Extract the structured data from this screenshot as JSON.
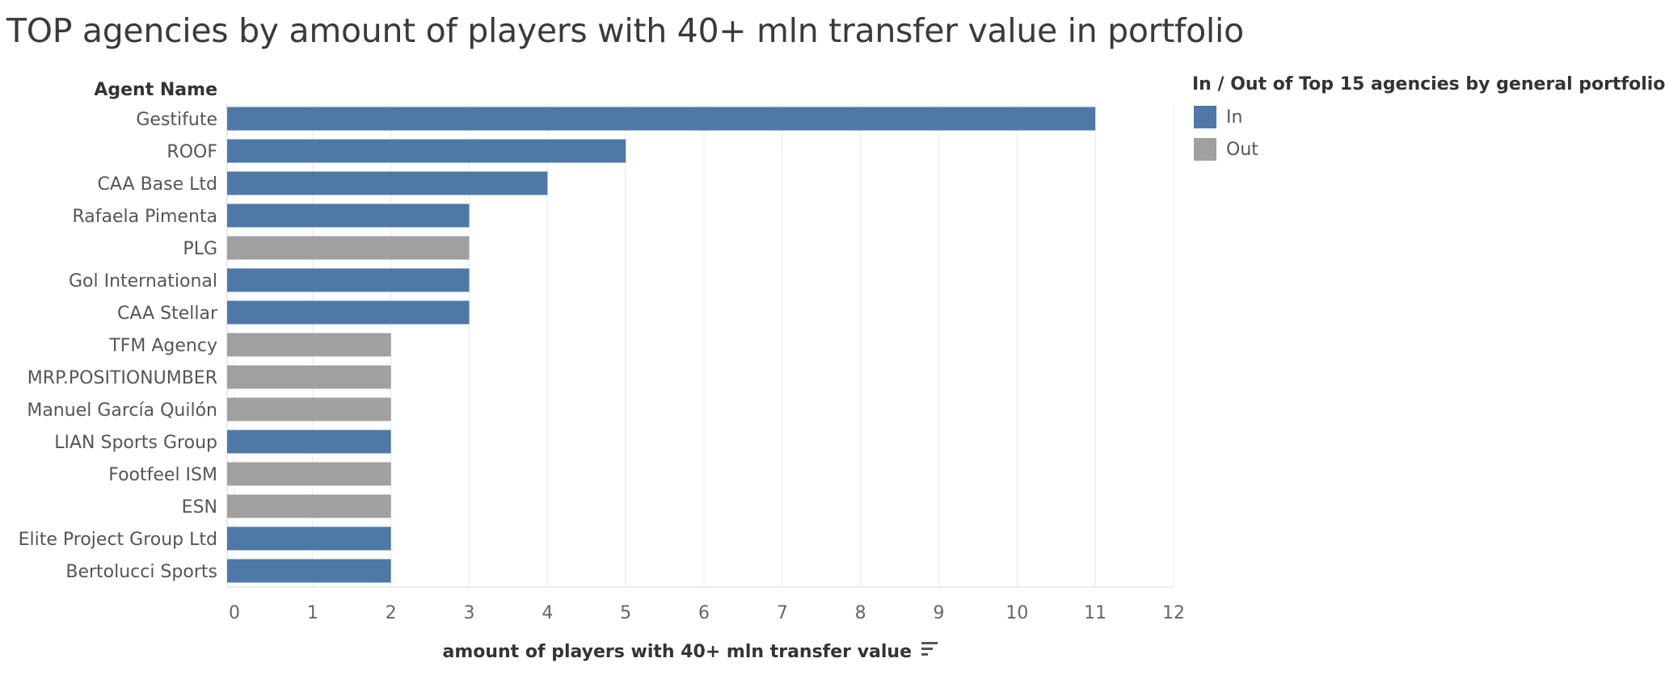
{
  "chart_data": {
    "type": "bar",
    "orientation": "horizontal",
    "title": "TOP agencies by amount of players with 40+ mln transfer value in portfolio",
    "ylabel": "Agent Name",
    "xlabel": "amount of players with 40+ mln transfer value",
    "xlim": [
      0,
      12
    ],
    "xticks": [
      "0",
      "1",
      "2",
      "3",
      "4",
      "5",
      "6",
      "7",
      "8",
      "9",
      "10",
      "11",
      "12"
    ],
    "grid": true,
    "sort_icon": "sort-descending-icon",
    "legend": {
      "title": "In / Out of Top 15 agencies by general portfolio",
      "placement": "top-right",
      "items": [
        {
          "label": "In",
          "color": "#4e79a7"
        },
        {
          "label": "Out",
          "color": "#a0a0a0"
        }
      ]
    },
    "categories": [
      "Gestifute",
      "ROOF",
      "CAA Base Ltd",
      "Rafaela Pimenta",
      "PLG",
      "Gol International",
      "CAA Stellar",
      "TFM Agency",
      "MRP.POSITIONUMBER",
      "Manuel García Quilón",
      "LIAN Sports Group",
      "Footfeel ISM",
      "ESN",
      "Elite Project Group Ltd",
      "Bertolucci Sports"
    ],
    "values": [
      11,
      5,
      4,
      3,
      3,
      3,
      3,
      2,
      2,
      2,
      2,
      2,
      2,
      2,
      2
    ],
    "group": [
      "In",
      "In",
      "In",
      "In",
      "Out",
      "In",
      "In",
      "Out",
      "Out",
      "Out",
      "In",
      "Out",
      "Out",
      "In",
      "In"
    ]
  }
}
